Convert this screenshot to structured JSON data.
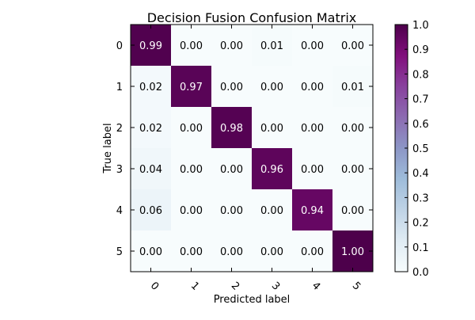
{
  "chart_data": {
    "type": "heatmap",
    "title": "Decision Fusion Confusion Matrix",
    "xlabel": "Predicted label",
    "ylabel": "True label",
    "x_categories": [
      "0",
      "1",
      "2",
      "3",
      "4",
      "5"
    ],
    "y_categories": [
      "0",
      "1",
      "2",
      "3",
      "4",
      "5"
    ],
    "values": [
      [
        0.99,
        0.0,
        0.0,
        0.01,
        0.0,
        0.0
      ],
      [
        0.02,
        0.97,
        0.0,
        0.0,
        0.0,
        0.01
      ],
      [
        0.02,
        0.0,
        0.98,
        0.0,
        0.0,
        0.0
      ],
      [
        0.04,
        0.0,
        0.0,
        0.96,
        0.0,
        0.0
      ],
      [
        0.06,
        0.0,
        0.0,
        0.0,
        0.94,
        0.0
      ],
      [
        0.0,
        0.0,
        0.0,
        0.0,
        0.0,
        1.0
      ]
    ],
    "value_format": "0.00",
    "colormap": "BuPu",
    "colorbar": {
      "vmin": 0.0,
      "vmax": 1.0,
      "ticks": [
        "0.0",
        "0.1",
        "0.2",
        "0.3",
        "0.4",
        "0.5",
        "0.6",
        "0.7",
        "0.8",
        "0.9",
        "1.0"
      ]
    },
    "x_tick_rotation": 45,
    "grid": false,
    "text_color_light": "#ffffff",
    "text_color_dark": "#000000"
  }
}
